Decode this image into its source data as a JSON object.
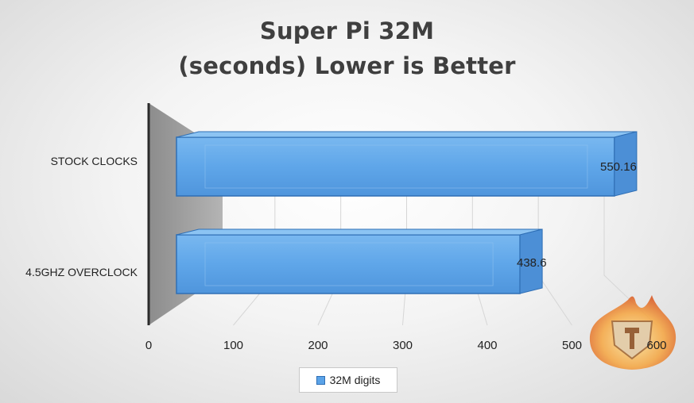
{
  "chart_data": {
    "type": "bar",
    "orientation": "horizontal",
    "title": [
      "Super Pi 32M",
      "(seconds) Lower is Better"
    ],
    "categories": [
      "STOCK CLOCKS",
      "4.5GHZ OVERCLOCK"
    ],
    "series": [
      {
        "name": "32M digits",
        "values": [
          550.16,
          438.6
        ]
      }
    ],
    "data_labels": [
      "550.16",
      "438.6"
    ],
    "xlim": [
      0,
      600
    ],
    "x_ticks": [
      "0",
      "100",
      "200",
      "300",
      "400",
      "500",
      "600"
    ],
    "grid": true,
    "legend_position": "bottom",
    "bar_color": "#5ba3e8",
    "bar_edge_color": "#2f6fb5"
  },
  "logo": {
    "icon": "flame-shield-logo-icon"
  }
}
